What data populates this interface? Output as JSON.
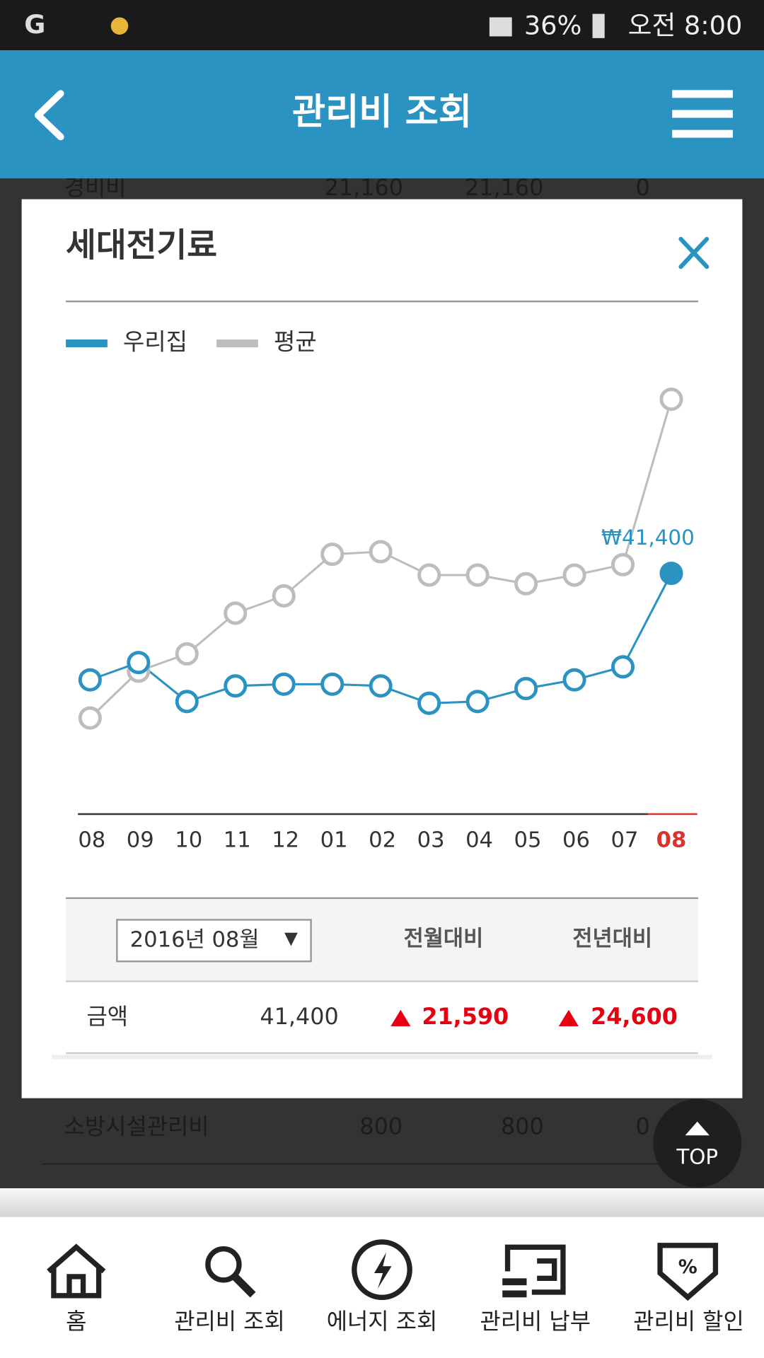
{
  "status_bar": {
    "battery": "36%",
    "time": "오전 8:00"
  },
  "header": {
    "title": "관리비 조회"
  },
  "background_rows": [
    [
      "경비비",
      "21,160",
      "21,160",
      "0"
    ],
    [
      "소방시설관리비",
      "800",
      "800",
      "0"
    ]
  ],
  "popup": {
    "title": "세대전기료",
    "table": {
      "period": "2016년 08월",
      "headers": [
        "전월대비",
        "전년대비"
      ],
      "row": {
        "label": "금액",
        "amount": "41,400",
        "month_diff": "21,590",
        "year_diff": "24,600"
      }
    }
  },
  "chart_data": {
    "type": "line",
    "categories": [
      "08",
      "09",
      "10",
      "11",
      "12",
      "01",
      "02",
      "03",
      "04",
      "05",
      "06",
      "07",
      "08"
    ],
    "highlight_color": "#d9342b",
    "series": [
      {
        "name": "우리집",
        "color": "#2a93c2",
        "values": [
          16800,
          20800,
          11800,
          15400,
          15800,
          15800,
          15400,
          11400,
          11800,
          14800,
          16800,
          19810,
          41400
        ],
        "value_labels": [
          null,
          null,
          null,
          null,
          null,
          null,
          null,
          null,
          null,
          null,
          null,
          null,
          "₩41,400"
        ]
      },
      {
        "name": "평균",
        "color": "#bdbdbd",
        "values": [
          8000,
          18800,
          22800,
          32200,
          36200,
          45800,
          46400,
          41000,
          41000,
          39000,
          41000,
          43400,
          81600
        ]
      }
    ]
  },
  "top_button": "TOP",
  "nav": [
    "홈",
    "관리비 조회",
    "에너지 조회",
    "관리비 납부",
    "관리비 할인"
  ]
}
